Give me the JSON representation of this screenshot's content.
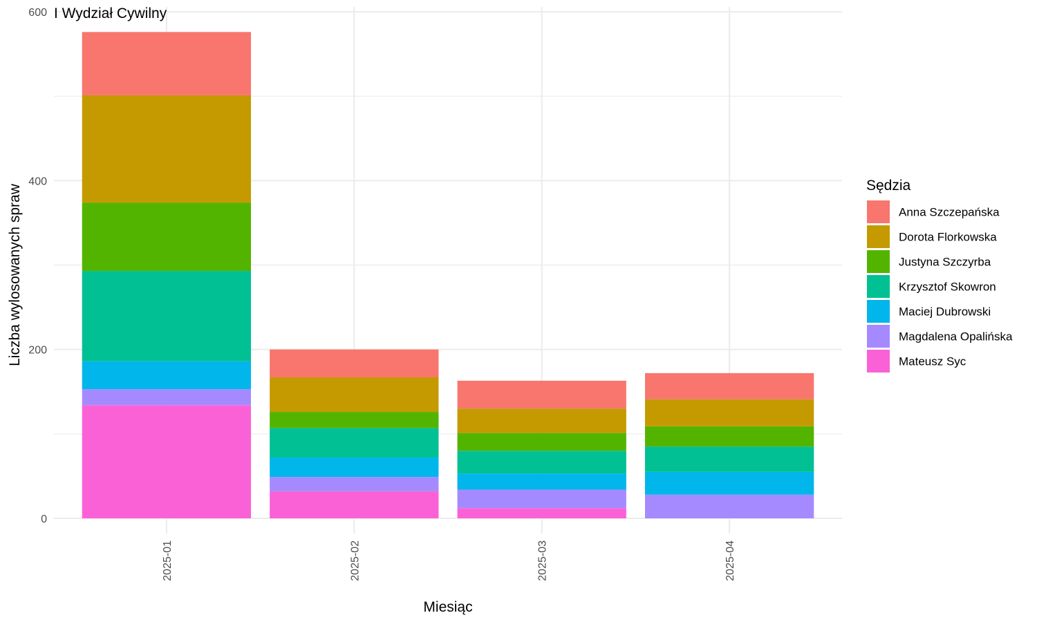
{
  "chart_data": {
    "type": "bar",
    "stacked": true,
    "title": "I Wydział Cywilny",
    "xlabel": "Miesiąc",
    "ylabel": "Liczba wylosowanych spraw",
    "ylim": [
      0,
      600
    ],
    "yticks": [
      0,
      200,
      400,
      600
    ],
    "grid": true,
    "legend_position": "right",
    "legend_title": "Sędzia",
    "categories": [
      "2025-01",
      "2025-02",
      "2025-03",
      "2025-04"
    ],
    "series": [
      {
        "name": "Anna Szczepańska",
        "color": "#F8766D",
        "values": [
          75,
          33,
          33,
          31
        ]
      },
      {
        "name": "Dorota Florkowska",
        "color": "#C49A00",
        "values": [
          127,
          41,
          29,
          32
        ]
      },
      {
        "name": "Justyna Szczyrba",
        "color": "#53B400",
        "values": [
          81,
          19,
          21,
          24
        ]
      },
      {
        "name": "Krzysztof Skowron",
        "color": "#00C094",
        "values": [
          107,
          35,
          27,
          30
        ]
      },
      {
        "name": "Maciej Dubrowski",
        "color": "#00B6EB",
        "values": [
          33,
          23,
          19,
          27
        ]
      },
      {
        "name": "Magdalena Opalińska",
        "color": "#A58AFF",
        "values": [
          19,
          17,
          22,
          28
        ]
      },
      {
        "name": "Mateusz Syc",
        "color": "#FB61D7",
        "values": [
          134,
          32,
          12,
          0
        ]
      }
    ]
  }
}
